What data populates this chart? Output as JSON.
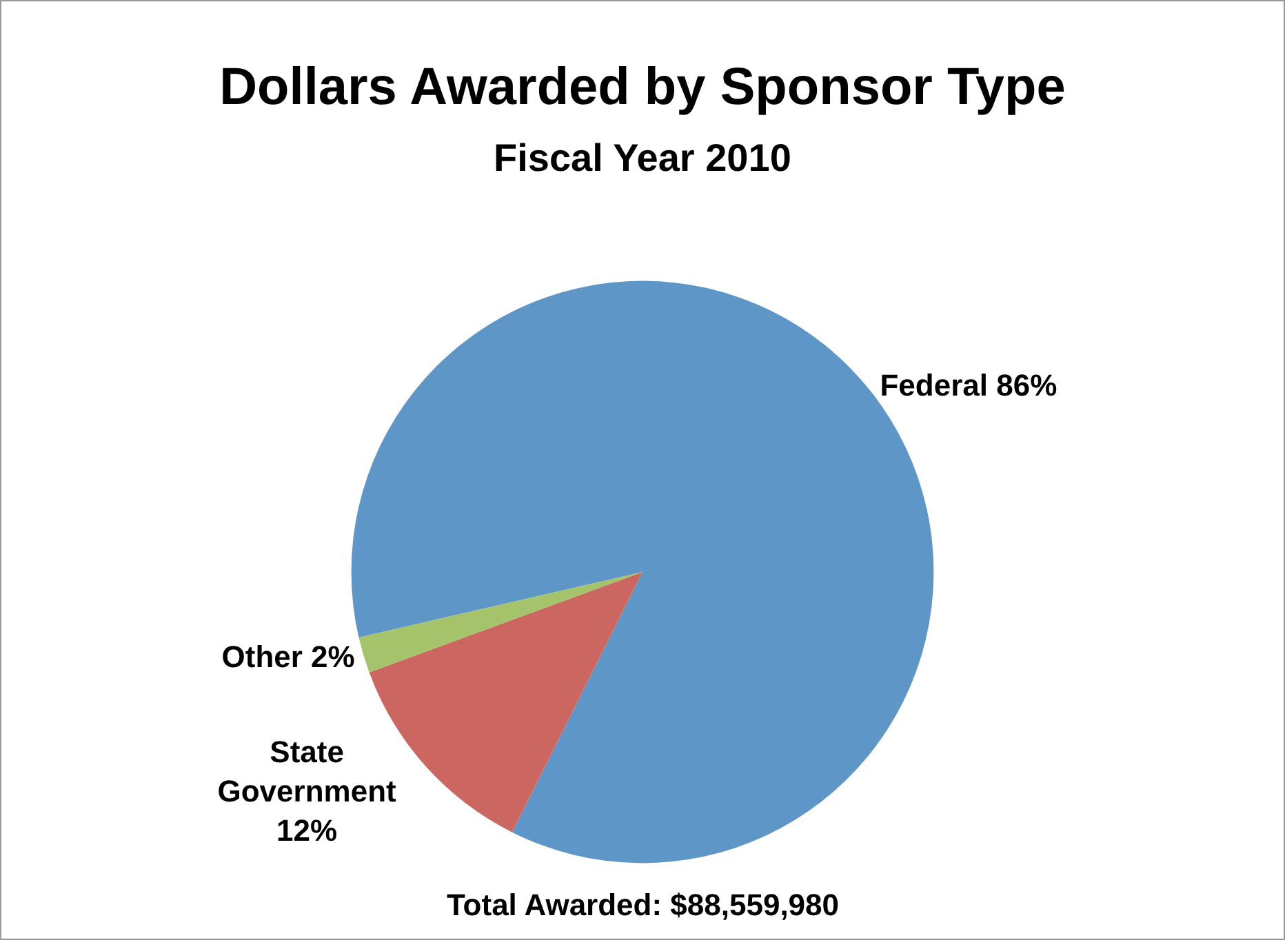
{
  "chart_data": {
    "type": "pie",
    "title": "Dollars Awarded by Sponsor Type",
    "subtitle": "Fiscal Year 2010",
    "categories": [
      "Federal",
      "State Government",
      "Other"
    ],
    "values": [
      86,
      12,
      2
    ],
    "colors": [
      "#5f96c8",
      "#cc6660",
      "#a5c36b"
    ],
    "value_labels": [
      "86%",
      "12%",
      "2%"
    ],
    "legend": false,
    "annotations": [
      "Total Awarded: $88,559,980"
    ]
  }
}
